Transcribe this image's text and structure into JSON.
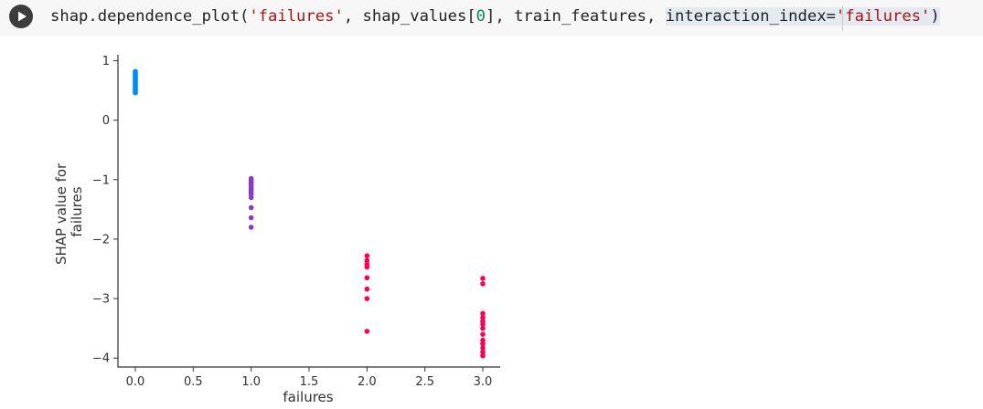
{
  "cell": {
    "run_icon": "play-icon",
    "code": [
      {
        "t": "shap.dependence_plot(",
        "c": "plain"
      },
      {
        "t": "'failures'",
        "c": "str"
      },
      {
        "t": ", shap_values[",
        "c": "plain"
      },
      {
        "t": "0",
        "c": "num"
      },
      {
        "t": "], train_features, ",
        "c": "plain"
      },
      {
        "t": "interaction_index=",
        "c": "hl"
      },
      {
        "t": "'failures'",
        "c": "hl-str"
      },
      {
        "t": ")",
        "c": "hl"
      }
    ]
  },
  "chart_data": {
    "type": "scatter",
    "xlabel": "failures",
    "ylabel": [
      "SHAP value for",
      "failures"
    ],
    "xlim": [
      -0.15,
      3.15
    ],
    "ylim": [
      -4.15,
      1.1
    ],
    "xticks": [
      0.0,
      0.5,
      1.0,
      1.5,
      2.0,
      2.5,
      3.0
    ],
    "xticklabels": [
      "0.0",
      "0.5",
      "1.0",
      "1.5",
      "2.0",
      "2.5",
      "3.0"
    ],
    "yticks": [
      1,
      0,
      -1,
      -2,
      -3,
      -4
    ],
    "yticklabels": [
      "1",
      "0",
      "−1",
      "−2",
      "−3",
      "−4"
    ],
    "grid": false,
    "colors": {
      "0": "#008bfb",
      "1": "#8c3bc4",
      "2": "#ff0051",
      "3": "#ff0051"
    },
    "points": [
      {
        "x": 0,
        "y": 0.82
      },
      {
        "x": 0,
        "y": 0.8
      },
      {
        "x": 0,
        "y": 0.78
      },
      {
        "x": 0,
        "y": 0.76
      },
      {
        "x": 0,
        "y": 0.74
      },
      {
        "x": 0,
        "y": 0.72
      },
      {
        "x": 0,
        "y": 0.7
      },
      {
        "x": 0,
        "y": 0.68
      },
      {
        "x": 0,
        "y": 0.66
      },
      {
        "x": 0,
        "y": 0.64
      },
      {
        "x": 0,
        "y": 0.62
      },
      {
        "x": 0,
        "y": 0.6
      },
      {
        "x": 0,
        "y": 0.58
      },
      {
        "x": 0,
        "y": 0.56
      },
      {
        "x": 0,
        "y": 0.54
      },
      {
        "x": 0,
        "y": 0.52
      },
      {
        "x": 0,
        "y": 0.5
      },
      {
        "x": 0,
        "y": 0.48
      },
      {
        "x": 0,
        "y": 0.46
      },
      {
        "x": 1,
        "y": -0.98
      },
      {
        "x": 1,
        "y": -1.01
      },
      {
        "x": 1,
        "y": -1.04
      },
      {
        "x": 1,
        "y": -1.07
      },
      {
        "x": 1,
        "y": -1.1
      },
      {
        "x": 1,
        "y": -1.13
      },
      {
        "x": 1,
        "y": -1.16
      },
      {
        "x": 1,
        "y": -1.19
      },
      {
        "x": 1,
        "y": -1.22
      },
      {
        "x": 1,
        "y": -1.25
      },
      {
        "x": 1,
        "y": -1.3
      },
      {
        "x": 1,
        "y": -1.47
      },
      {
        "x": 1,
        "y": -1.64
      },
      {
        "x": 1,
        "y": -1.8
      },
      {
        "x": 2,
        "y": -2.28
      },
      {
        "x": 2,
        "y": -2.36
      },
      {
        "x": 2,
        "y": -2.42
      },
      {
        "x": 2,
        "y": -2.47
      },
      {
        "x": 2,
        "y": -2.65
      },
      {
        "x": 2,
        "y": -2.84
      },
      {
        "x": 2,
        "y": -3.0
      },
      {
        "x": 2,
        "y": -3.55
      },
      {
        "x": 3,
        "y": -2.66
      },
      {
        "x": 3,
        "y": -2.75
      },
      {
        "x": 3,
        "y": -3.25
      },
      {
        "x": 3,
        "y": -3.32
      },
      {
        "x": 3,
        "y": -3.38
      },
      {
        "x": 3,
        "y": -3.43
      },
      {
        "x": 3,
        "y": -3.5
      },
      {
        "x": 3,
        "y": -3.6
      },
      {
        "x": 3,
        "y": -3.7
      },
      {
        "x": 3,
        "y": -3.76
      },
      {
        "x": 3,
        "y": -3.83
      },
      {
        "x": 3,
        "y": -3.9
      },
      {
        "x": 3,
        "y": -3.96
      }
    ]
  }
}
